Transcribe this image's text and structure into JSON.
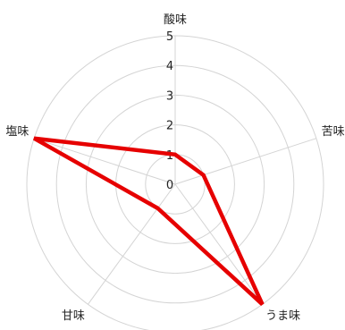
{
  "chart_data": {
    "type": "radar",
    "categories": [
      "酸味",
      "苦味",
      "うま味",
      "甘味",
      "塩味"
    ],
    "series": [
      {
        "values": [
          1,
          1,
          5,
          1,
          5
        ]
      }
    ],
    "rlim": [
      0,
      5
    ],
    "ticks": [
      "0",
      "1",
      "2",
      "3",
      "4",
      "5"
    ],
    "grid": true,
    "series_color": "#e60000",
    "grid_color": "#d4d4d4"
  }
}
